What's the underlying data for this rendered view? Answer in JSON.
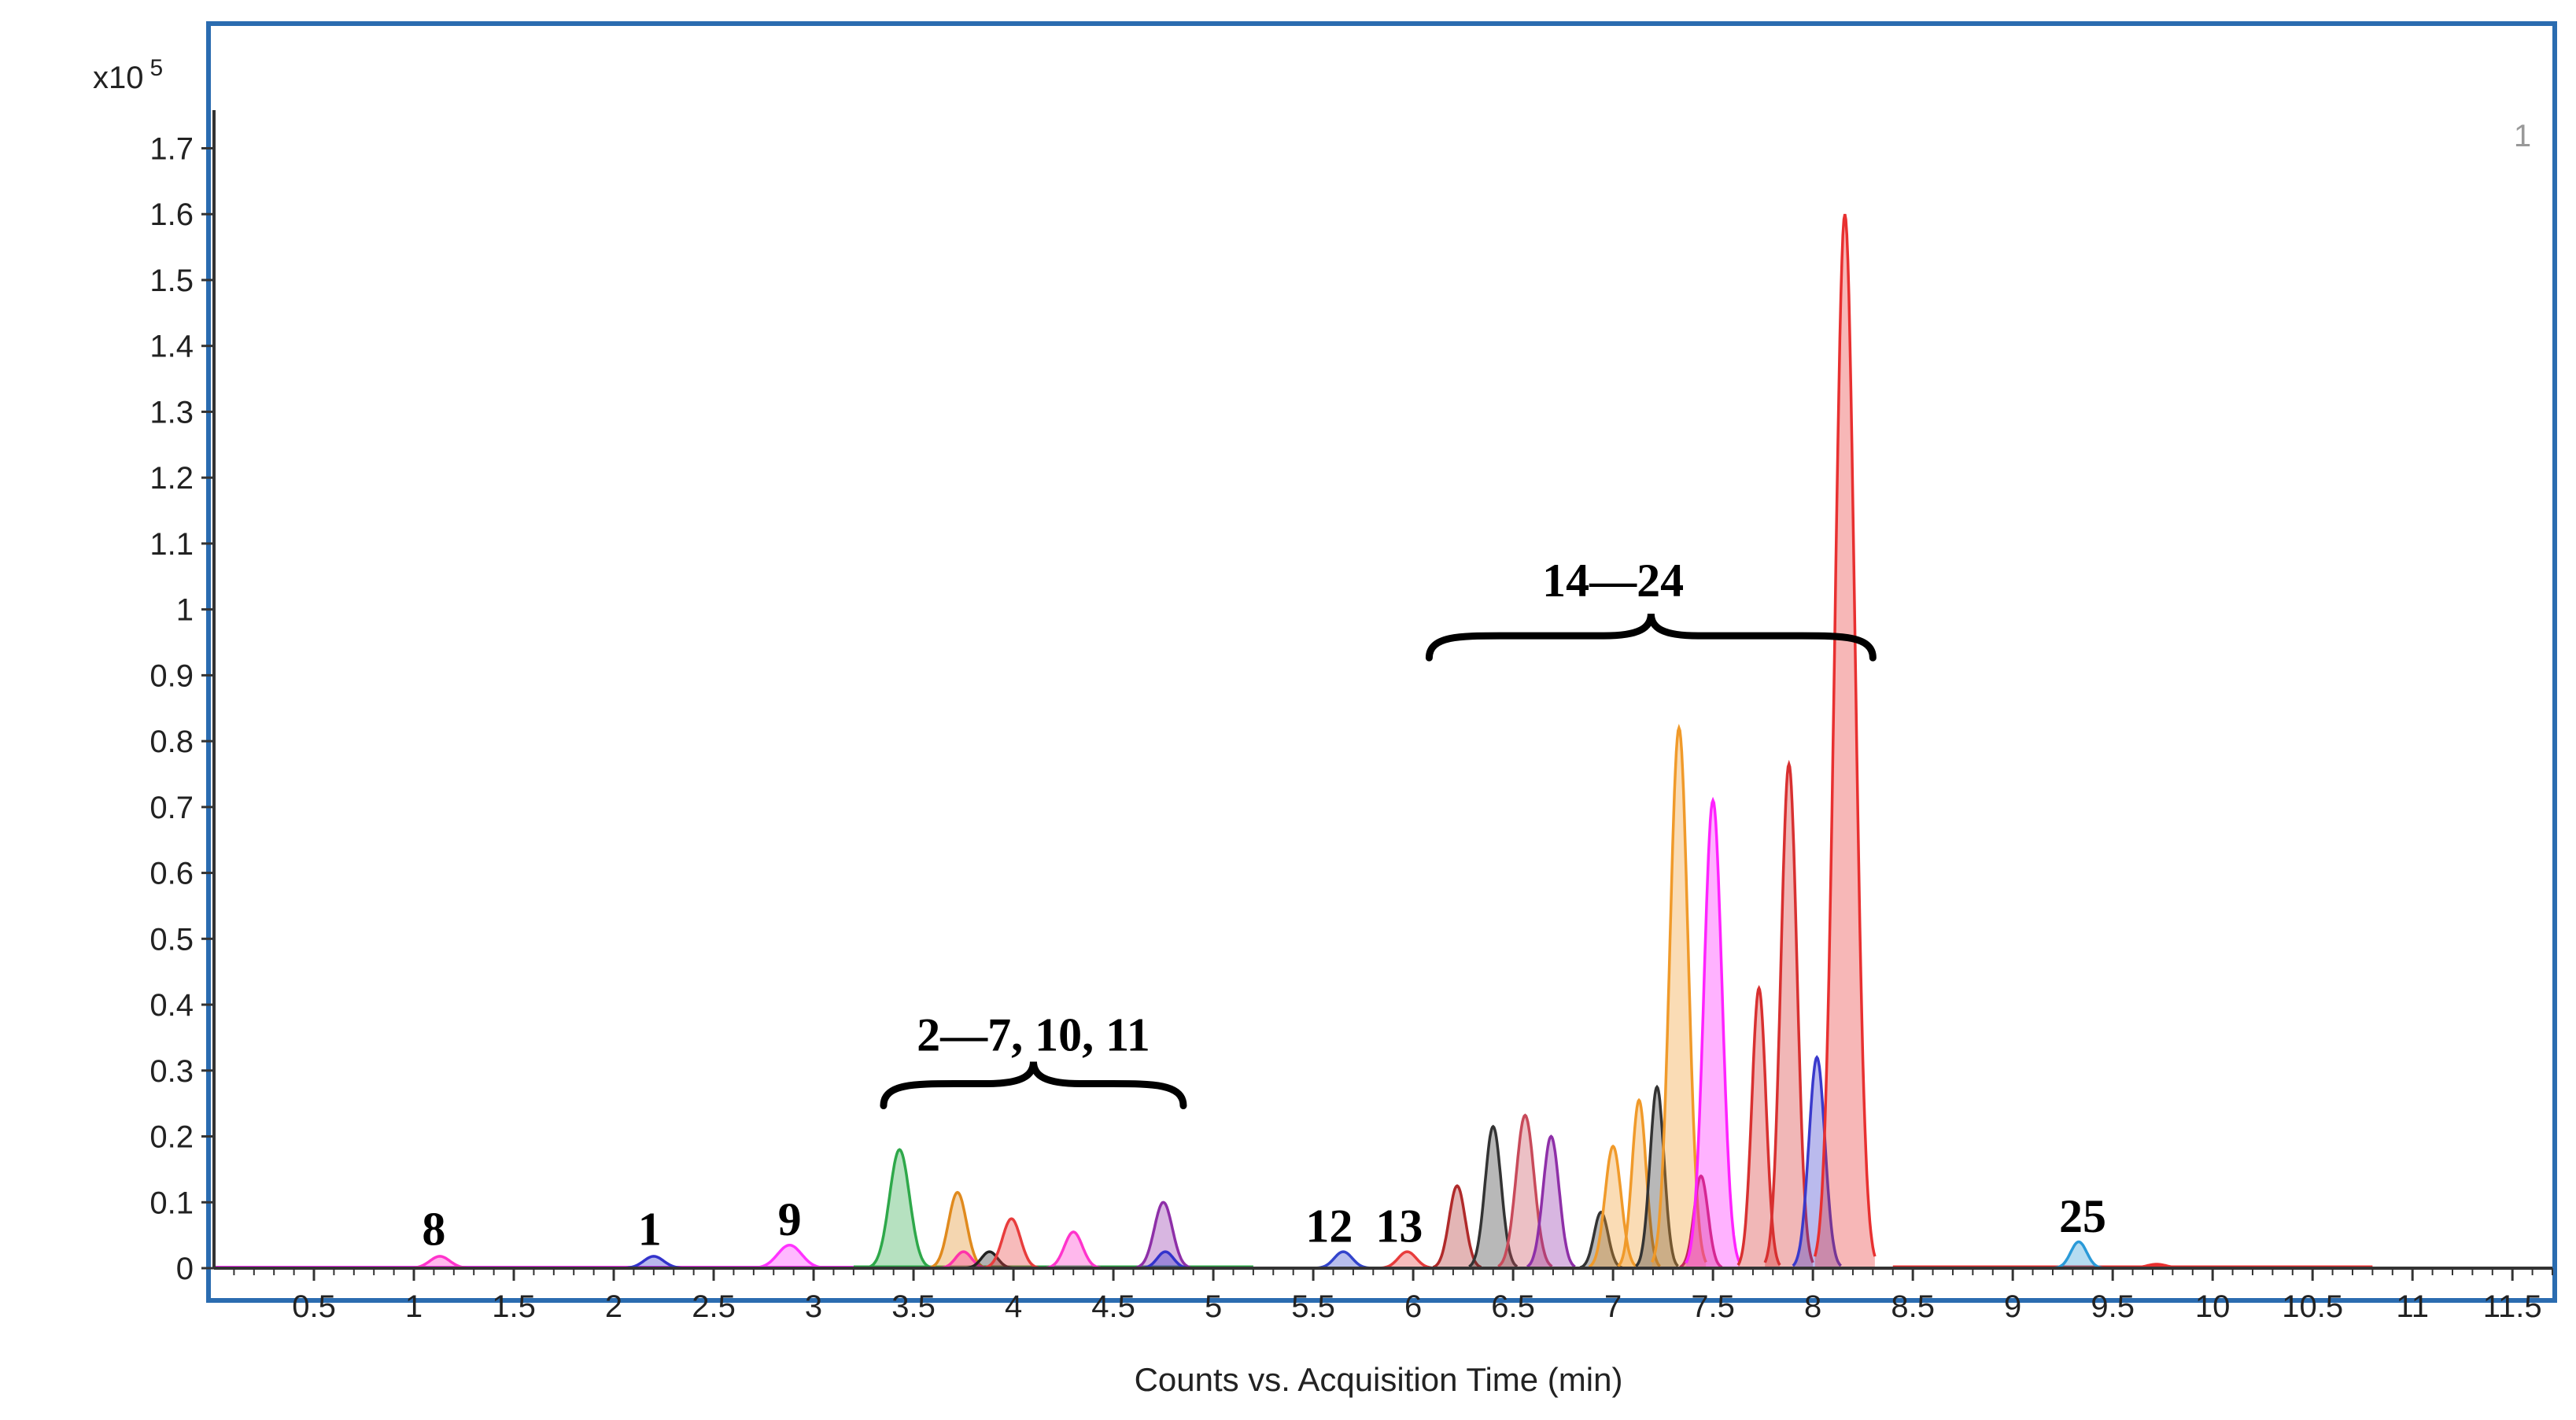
{
  "chart_data": {
    "type": "line",
    "title": "",
    "xlabel": "Counts vs. Acquisition Time (min)",
    "ylabel": "",
    "y_multiplier_label": "x10",
    "y_multiplier_exp": "5",
    "corner_label": "1",
    "xlim": [
      0,
      11.7
    ],
    "ylim": [
      0,
      1.82
    ],
    "x_ticks": [
      0.5,
      1,
      1.5,
      2,
      2.5,
      3,
      3.5,
      4,
      4.5,
      5,
      5.5,
      6,
      6.5,
      7,
      7.5,
      8,
      8.5,
      9,
      9.5,
      10,
      10.5,
      11,
      11.5
    ],
    "x_tick_labels": [
      "0.5",
      "1",
      "1.5",
      "2",
      "2.5",
      "3",
      "3.5",
      "4",
      "4.5",
      "5",
      "5.5",
      "6",
      "6.5",
      "7",
      "7.5",
      "8",
      "8.5",
      "9",
      "9.5",
      "10",
      "10.5",
      "11",
      "11.5"
    ],
    "y_ticks": [
      0,
      0.1,
      0.2,
      0.3,
      0.4,
      0.5,
      0.6,
      0.7,
      0.8,
      0.9,
      1,
      1.1,
      1.2,
      1.3,
      1.4,
      1.5,
      1.6,
      1.7
    ],
    "y_tick_labels": [
      "0",
      "0.1",
      "0.2",
      "0.3",
      "0.4",
      "0.5",
      "0.6",
      "0.7",
      "0.8",
      "0.9",
      "1",
      "1.1",
      "1.2",
      "1.3",
      "1.4",
      "1.5",
      "1.6",
      "1.7"
    ],
    "grid": false,
    "peaks": [
      {
        "rt": 1.13,
        "height": 0.018,
        "width": 0.05,
        "color": "#ff33cc"
      },
      {
        "rt": 2.2,
        "height": 0.018,
        "width": 0.05,
        "color": "#3333cc"
      },
      {
        "rt": 2.88,
        "height": 0.035,
        "width": 0.06,
        "color": "#ff33ff"
      },
      {
        "rt": 3.43,
        "height": 0.18,
        "width": 0.05,
        "color": "#2ea84a"
      },
      {
        "rt": 3.72,
        "height": 0.115,
        "width": 0.045,
        "color": "#e08a1e"
      },
      {
        "rt": 3.75,
        "height": 0.025,
        "width": 0.04,
        "color": "#ff33aa"
      },
      {
        "rt": 3.88,
        "height": 0.025,
        "width": 0.04,
        "color": "#222222"
      },
      {
        "rt": 3.99,
        "height": 0.075,
        "width": 0.045,
        "color": "#e83c3c"
      },
      {
        "rt": 4.3,
        "height": 0.055,
        "width": 0.045,
        "color": "#ff33cc"
      },
      {
        "rt": 4.75,
        "height": 0.1,
        "width": 0.045,
        "color": "#8e2fa8"
      },
      {
        "rt": 4.76,
        "height": 0.025,
        "width": 0.04,
        "color": "#3333cc"
      },
      {
        "rt": 5.65,
        "height": 0.025,
        "width": 0.045,
        "color": "#3344cc"
      },
      {
        "rt": 5.97,
        "height": 0.025,
        "width": 0.045,
        "color": "#e83c3c"
      },
      {
        "rt": 6.22,
        "height": 0.125,
        "width": 0.04,
        "color": "#b02a2a"
      },
      {
        "rt": 6.4,
        "height": 0.215,
        "width": 0.04,
        "color": "#333333"
      },
      {
        "rt": 6.56,
        "height": 0.232,
        "width": 0.045,
        "color": "#c84a5a"
      },
      {
        "rt": 6.69,
        "height": 0.2,
        "width": 0.04,
        "color": "#8e2fa8"
      },
      {
        "rt": 6.94,
        "height": 0.085,
        "width": 0.035,
        "color": "#333333"
      },
      {
        "rt": 7.0,
        "height": 0.185,
        "width": 0.04,
        "color": "#f09a2a"
      },
      {
        "rt": 7.13,
        "height": 0.255,
        "width": 0.035,
        "color": "#f09a2a"
      },
      {
        "rt": 7.22,
        "height": 0.275,
        "width": 0.035,
        "color": "#333333"
      },
      {
        "rt": 7.33,
        "height": 0.82,
        "width": 0.045,
        "color": "#f09a2a"
      },
      {
        "rt": 7.44,
        "height": 0.14,
        "width": 0.035,
        "color": "#c02a5a"
      },
      {
        "rt": 7.5,
        "height": 0.71,
        "width": 0.045,
        "color": "#ff22ff"
      },
      {
        "rt": 7.73,
        "height": 0.425,
        "width": 0.035,
        "color": "#d83030"
      },
      {
        "rt": 7.88,
        "height": 0.765,
        "width": 0.04,
        "color": "#d83030"
      },
      {
        "rt": 8.02,
        "height": 0.32,
        "width": 0.04,
        "color": "#3a3acc"
      },
      {
        "rt": 8.16,
        "height": 1.6,
        "width": 0.05,
        "color": "#e83030"
      },
      {
        "rt": 9.33,
        "height": 0.04,
        "width": 0.04,
        "color": "#2a9ad8"
      },
      {
        "rt": 9.72,
        "height": 0.006,
        "width": 0.05,
        "color": "#e83030"
      }
    ],
    "annotations": [
      {
        "text": "8",
        "x": 1.1,
        "y": 0.035
      },
      {
        "text": "1",
        "x": 2.18,
        "y": 0.035
      },
      {
        "text": "9",
        "x": 2.88,
        "y": 0.05
      },
      {
        "text": "2—7, 10, 11",
        "x": 4.1,
        "y": 0.33
      },
      {
        "text": "12",
        "x": 5.58,
        "y": 0.04
      },
      {
        "text": "13",
        "x": 5.93,
        "y": 0.04
      },
      {
        "text": "14—24",
        "x": 7.0,
        "y": 1.02
      },
      {
        "text": "25",
        "x": 9.35,
        "y": 0.055
      }
    ],
    "braces": [
      {
        "x0": 3.35,
        "x1": 4.85,
        "y": 0.28
      },
      {
        "x0": 6.08,
        "x1": 8.3,
        "y": 0.96
      }
    ]
  }
}
